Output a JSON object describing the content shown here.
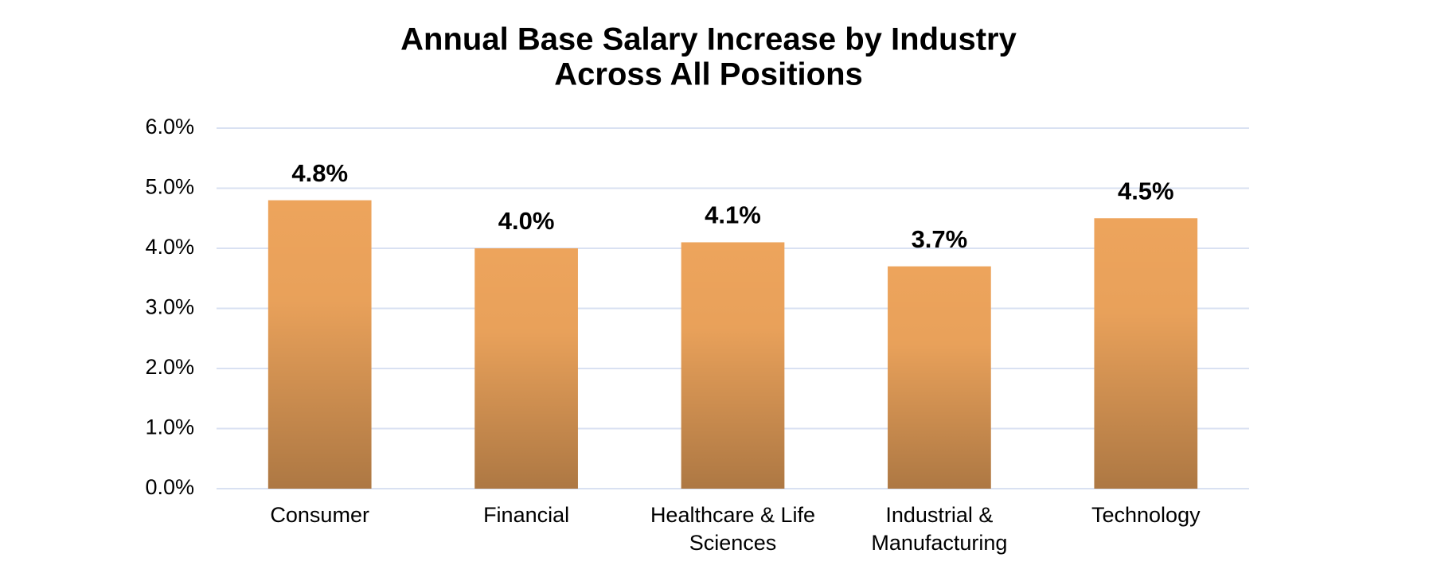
{
  "chart_data": {
    "type": "bar",
    "title": "Annual Base Salary Increase by Industry",
    "subtitle": "Across All Positions",
    "categories": [
      "Consumer",
      "Financial",
      "Healthcare & Life Sciences",
      "Industrial & Manufacturing",
      "Technology"
    ],
    "values": [
      4.8,
      4.0,
      4.1,
      3.7,
      4.5
    ],
    "value_labels": [
      "4.8%",
      "4.0%",
      "4.1%",
      "3.7%",
      "4.5%"
    ],
    "color": "#eda45c",
    "ylim": [
      0,
      6
    ],
    "yticks": [
      {
        "value": 0,
        "label": "0.0%"
      },
      {
        "value": 1,
        "label": "1.0%"
      },
      {
        "value": 2,
        "label": "2.0%"
      },
      {
        "value": 3,
        "label": "3.0%"
      },
      {
        "value": 4,
        "label": "4.0%"
      },
      {
        "value": 5,
        "label": "5.0%"
      },
      {
        "value": 6,
        "label": "6.0%"
      }
    ],
    "grid": true
  }
}
